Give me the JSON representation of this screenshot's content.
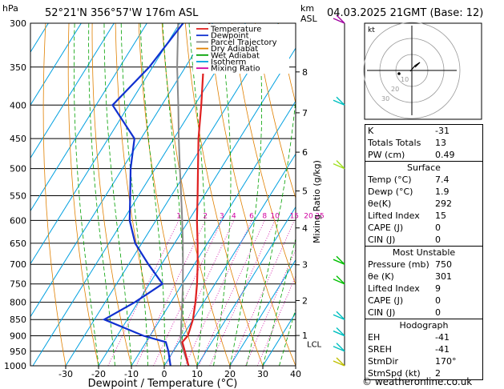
{
  "header": {
    "pressure_unit": "hPa",
    "location": "52°21'N  356°57'W  176m  ASL",
    "height_unit_top": "km",
    "height_unit_bottom": "ASL",
    "datetime": "04.03.2025  21GMT  (Base: 12)"
  },
  "legend": [
    {
      "label": "Temperature",
      "color": "#e02020"
    },
    {
      "label": "Dewpoint",
      "color": "#1030d0"
    },
    {
      "label": "Parcel Trajectory",
      "color": "#888888"
    },
    {
      "label": "Dry Adiabat",
      "color": "#e08000"
    },
    {
      "label": "Wet Adiabat",
      "color": "#00a000"
    },
    {
      "label": "Isotherm",
      "color": "#00a0e0"
    },
    {
      "label": "Mixing Ratio",
      "color": "#d000a0"
    }
  ],
  "chart_data": {
    "type": "skew-t",
    "xlabel": "Dewpoint / Temperature (°C)",
    "ylabel_left": "hPa",
    "ylabel_right": "Mixing Ratio (g/kg)",
    "pressure_levels": [
      300,
      350,
      400,
      450,
      500,
      550,
      600,
      650,
      700,
      750,
      800,
      850,
      900,
      950,
      1000
    ],
    "temperature_ticks": [
      -30,
      -20,
      -10,
      0,
      10,
      20,
      30,
      40
    ],
    "km_ticks": [
      {
        "label": "8",
        "p": 356
      },
      {
        "label": "7",
        "p": 411
      },
      {
        "label": "6",
        "p": 472
      },
      {
        "label": "5",
        "p": 541
      },
      {
        "label": "4",
        "p": 616
      },
      {
        "label": "3",
        "p": 701
      },
      {
        "label": "2",
        "p": 795
      },
      {
        "label": "1",
        "p": 899
      }
    ],
    "lcl_label": "LCL",
    "lcl_p": 920,
    "mixing_ratio_labels": [
      "1",
      "2",
      "3",
      "4",
      "6",
      "8",
      "10",
      "15",
      "20",
      "25"
    ],
    "mixing_ratio_values": [
      1,
      2,
      3,
      4,
      6,
      8,
      10,
      15,
      20,
      25
    ],
    "temperature_profile": [
      {
        "p": 1000,
        "t": 7.4
      },
      {
        "p": 950,
        "t": 3.5
      },
      {
        "p": 920,
        "t": 1.0
      },
      {
        "p": 900,
        "t": 1.5
      },
      {
        "p": 850,
        "t": 0.0
      },
      {
        "p": 800,
        "t": -2.5
      },
      {
        "p": 750,
        "t": -5.5
      },
      {
        "p": 700,
        "t": -9.0
      },
      {
        "p": 650,
        "t": -13.0
      },
      {
        "p": 600,
        "t": -17.5
      },
      {
        "p": 550,
        "t": -22.0
      },
      {
        "p": 500,
        "t": -27.0
      },
      {
        "p": 450,
        "t": -32.5
      },
      {
        "p": 400,
        "t": -38.0
      },
      {
        "p": 350,
        "t": -44.5
      },
      {
        "p": 300,
        "t": -51.0
      }
    ],
    "dewpoint_profile": [
      {
        "p": 1000,
        "t": 1.9
      },
      {
        "p": 950,
        "t": -1.5
      },
      {
        "p": 920,
        "t": -4.0
      },
      {
        "p": 900,
        "t": -12.0
      },
      {
        "p": 850,
        "t": -27.0
      },
      {
        "p": 800,
        "t": -21.0
      },
      {
        "p": 750,
        "t": -16.0
      },
      {
        "p": 700,
        "t": -24.0
      },
      {
        "p": 650,
        "t": -32.0
      },
      {
        "p": 600,
        "t": -38.0
      },
      {
        "p": 550,
        "t": -42.5
      },
      {
        "p": 500,
        "t": -47.5
      },
      {
        "p": 450,
        "t": -52.0
      },
      {
        "p": 400,
        "t": -65.0
      },
      {
        "p": 350,
        "t": -61.0
      },
      {
        "p": 300,
        "t": -59.0
      }
    ],
    "parcel_profile": [
      {
        "p": 1000,
        "t": 7.4
      },
      {
        "p": 920,
        "t": 0.5
      },
      {
        "p": 850,
        "t": -3.5
      },
      {
        "p": 800,
        "t": -6.5
      },
      {
        "p": 750,
        "t": -9.8
      },
      {
        "p": 700,
        "t": -13.5
      },
      {
        "p": 650,
        "t": -17.5
      },
      {
        "p": 600,
        "t": -22.0
      },
      {
        "p": 550,
        "t": -27.0
      },
      {
        "p": 500,
        "t": -32.5
      },
      {
        "p": 450,
        "t": -38.5
      },
      {
        "p": 400,
        "t": -45.0
      },
      {
        "p": 350,
        "t": -52.5
      },
      {
        "p": 300,
        "t": -60.5
      }
    ]
  },
  "hodograph": {
    "unit": "kt",
    "ring_labels": [
      "10",
      "20",
      "30"
    ]
  },
  "indices": [
    {
      "label": "K",
      "value": "-31"
    },
    {
      "label": "Totals Totals",
      "value": "13"
    },
    {
      "label": "PW (cm)",
      "value": "0.49"
    }
  ],
  "surface": {
    "title": "Surface",
    "rows": [
      {
        "label": "Temp (°C)",
        "value": "7.4"
      },
      {
        "label": "Dewp (°C)",
        "value": "1.9"
      },
      {
        "label": "θe(K)",
        "value": "292"
      },
      {
        "label": "Lifted Index",
        "value": "15"
      },
      {
        "label": "CAPE (J)",
        "value": "0"
      },
      {
        "label": "CIN (J)",
        "value": "0"
      }
    ]
  },
  "most_unstable": {
    "title": "Most Unstable",
    "rows": [
      {
        "label": "Pressure (mb)",
        "value": "750"
      },
      {
        "label": "θe (K)",
        "value": "301"
      },
      {
        "label": "Lifted Index",
        "value": "9"
      },
      {
        "label": "CAPE (J)",
        "value": "0"
      },
      {
        "label": "CIN (J)",
        "value": "0"
      }
    ]
  },
  "hodograph_table": {
    "title": "Hodograph",
    "rows": [
      {
        "label": "EH",
        "value": "-41"
      },
      {
        "label": "SREH",
        "value": "-41"
      },
      {
        "label": "StmDir",
        "value": "170°"
      },
      {
        "label": "StmSpd (kt)",
        "value": "2"
      }
    ]
  },
  "credit": "© weatheronline.co.uk"
}
